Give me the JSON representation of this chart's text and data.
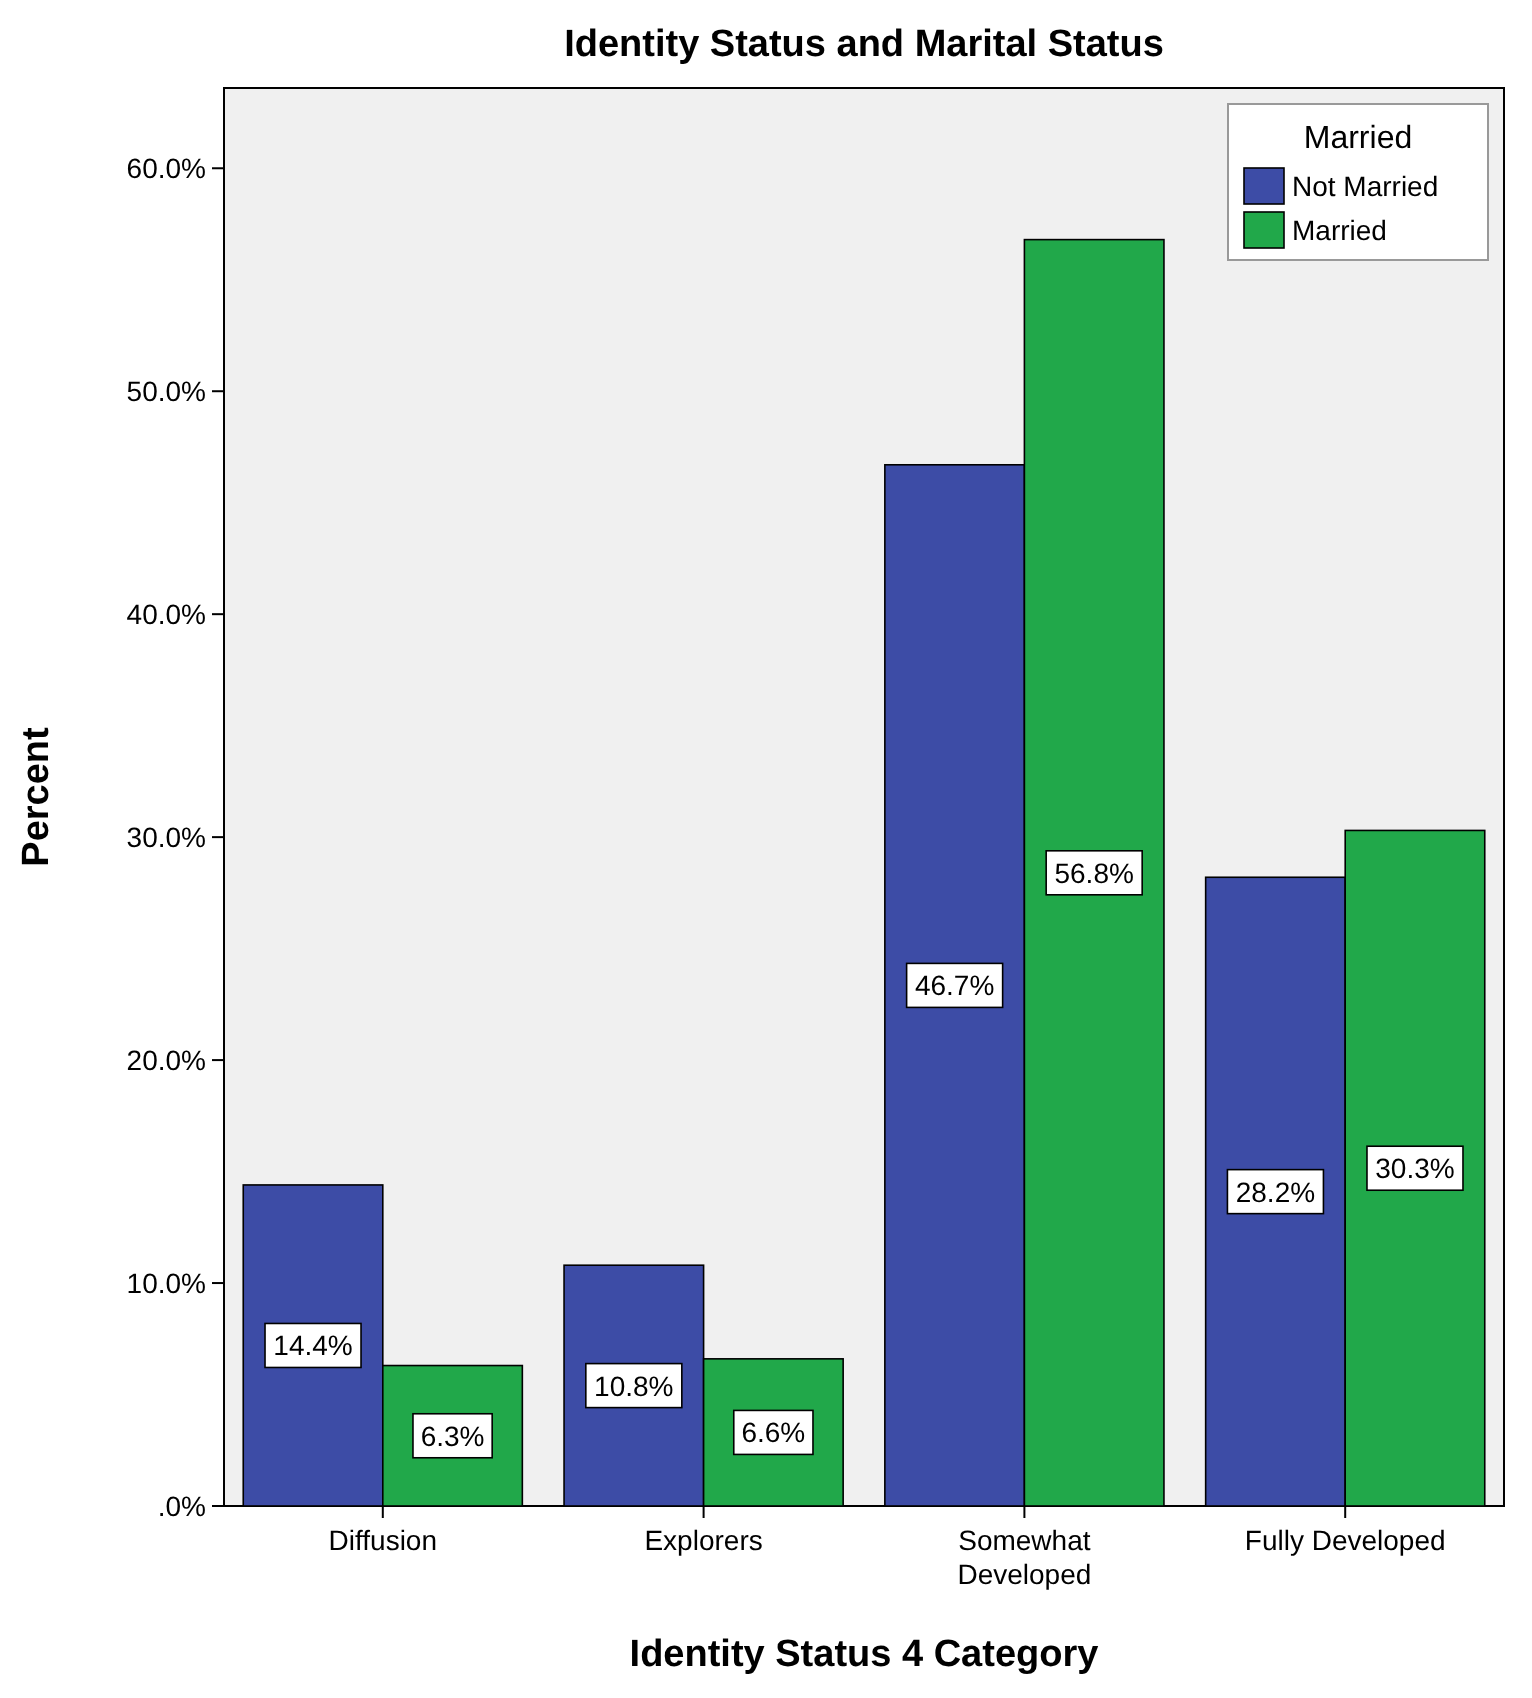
{
  "chart_data": {
    "type": "bar",
    "title": "Identity Status and Marital Status",
    "xlabel": "Identity Status 4 Category",
    "ylabel": "Percent",
    "legend_title": "Married",
    "legend": "top right",
    "grid": false,
    "categories": [
      "Diffusion",
      "Explorers",
      "Somewhat\nDeveloped",
      "Fully Developed"
    ],
    "ylim": [
      0,
      63.6
    ],
    "yticks": [
      {
        "value": 0,
        "label": ".0%"
      },
      {
        "value": 10,
        "label": "10.0%"
      },
      {
        "value": 20,
        "label": "20.0%"
      },
      {
        "value": 30,
        "label": "30.0%"
      },
      {
        "value": 40,
        "label": "40.0%"
      },
      {
        "value": 50,
        "label": "50.0%"
      },
      {
        "value": 60,
        "label": "60.0%"
      }
    ],
    "series": [
      {
        "name": "Not Married",
        "color": "#3d4ca6",
        "values": [
          14.4,
          10.8,
          46.7,
          28.2
        ],
        "value_labels": [
          "14.4%",
          "10.8%",
          "46.7%",
          "28.2%"
        ]
      },
      {
        "name": "Married",
        "color": "#21a84a",
        "values": [
          6.3,
          6.6,
          56.8,
          30.3
        ],
        "value_labels": [
          "6.3%",
          "6.6%",
          "56.8%",
          "30.3%"
        ]
      }
    ]
  }
}
